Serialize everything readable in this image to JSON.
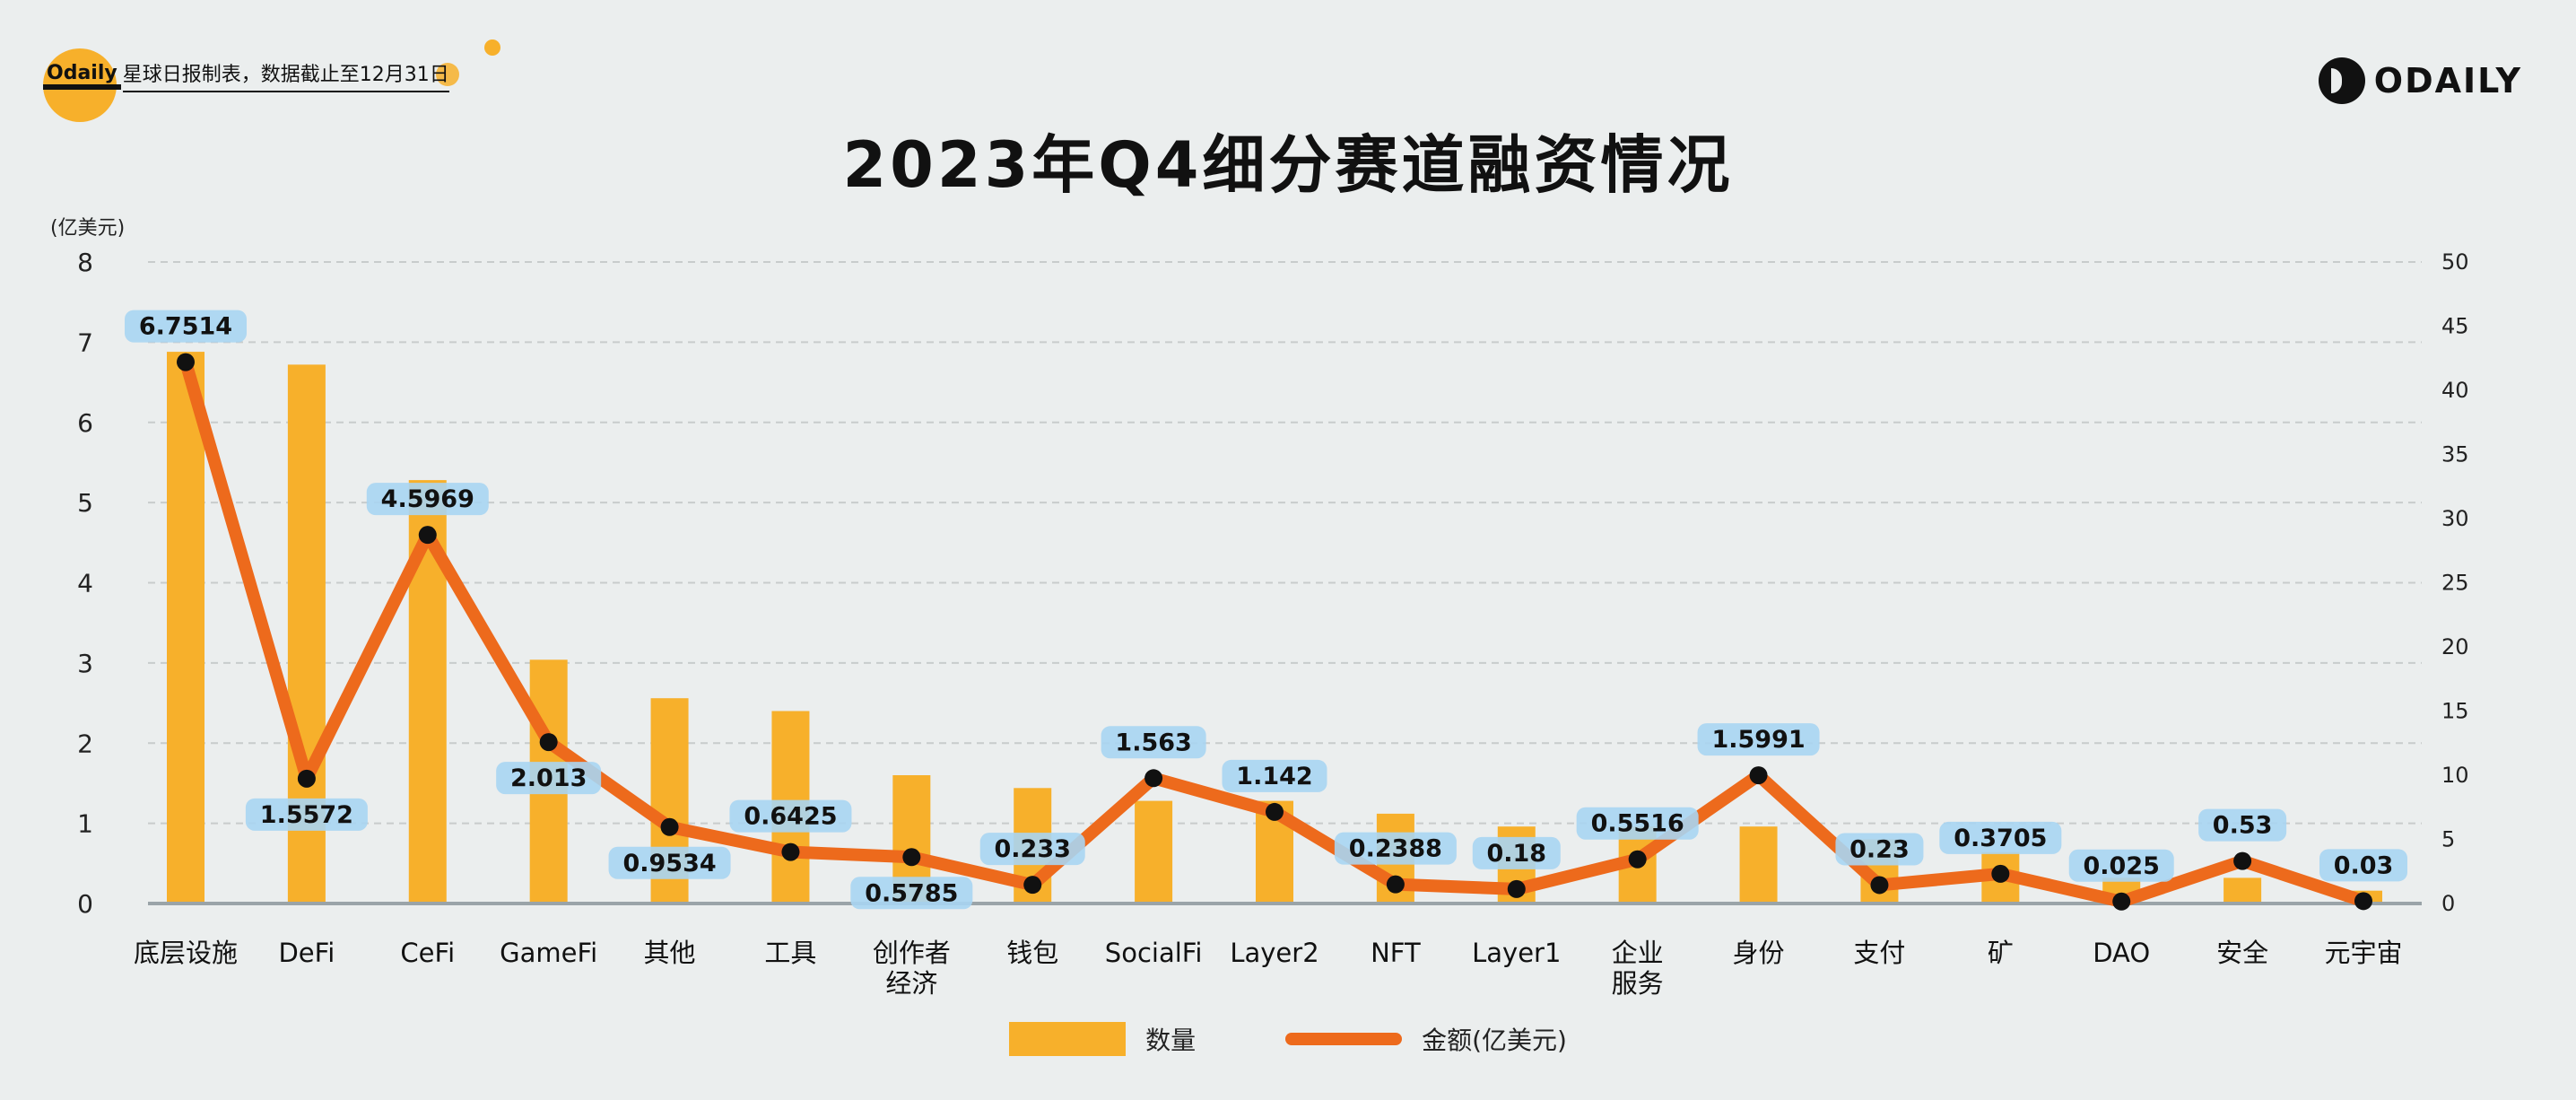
{
  "header": {
    "brand": "Odaily",
    "note": "星球日报制表，数据截止至12月31日",
    "title": "2023年Q4细分赛道融资情况",
    "logo_text": "ODAILY"
  },
  "colors": {
    "background": "#ebeeee",
    "bar": "#f7b02b",
    "line": "#ed6a1c",
    "label_bg": "#a9d5f2",
    "grid": "#c8cccc",
    "axis": "#9aa4a8"
  },
  "chart_data": {
    "type": "bar+line",
    "unit_label": "(亿美元)",
    "categories": [
      "底层设施",
      "DeFi",
      "CeFi",
      "GameFi",
      "其他",
      "工具",
      "创作者\n经济",
      "钱包",
      "SocialFi",
      "Layer2",
      "NFT",
      "Layer1",
      "企业\n服务",
      "身份",
      "支付",
      "矿",
      "DAO",
      "安全",
      "元宇宙"
    ],
    "series": [
      {
        "name": "数量",
        "type": "bar",
        "axis": "right",
        "values": [
          43,
          42,
          33,
          19,
          16,
          15,
          10,
          9,
          8,
          8,
          7,
          6,
          6,
          6,
          5,
          4,
          2,
          2,
          1
        ]
      },
      {
        "name": "金额(亿美元)",
        "type": "line",
        "axis": "left",
        "values": [
          6.7514,
          1.5572,
          4.5969,
          2.013,
          0.9534,
          0.6425,
          0.5785,
          0.233,
          1.563,
          1.142,
          0.2388,
          0.18,
          0.5516,
          1.5991,
          0.23,
          0.3705,
          0.025,
          0.53,
          0.03
        ],
        "labels": [
          "6.7514",
          "1.5572",
          "4.5969",
          "2.013",
          "0.9534",
          "0.6425",
          "0.5785",
          "0.233",
          "1.563",
          "1.142",
          "0.2388",
          "0.18",
          "0.5516",
          "1.5991",
          "0.23",
          "0.3705",
          "0.025",
          "0.53",
          "0.03"
        ],
        "label_pos": [
          "above",
          "below",
          "above",
          "below",
          "below",
          "above",
          "below",
          "above",
          "above",
          "above",
          "above",
          "above",
          "above",
          "above",
          "above",
          "above",
          "above",
          "above",
          "above"
        ]
      }
    ],
    "left_axis": {
      "min": 0,
      "max": 8,
      "ticks": [
        "0",
        "1",
        "2",
        "3",
        "4",
        "5",
        "6",
        "7",
        "8"
      ]
    },
    "right_axis": {
      "min": 0,
      "max": 50,
      "ticks": [
        "0",
        "5",
        "10",
        "15",
        "20",
        "25",
        "30",
        "35",
        "40",
        "45",
        "50"
      ]
    },
    "grid": true,
    "legend_position": "bottom-center"
  }
}
